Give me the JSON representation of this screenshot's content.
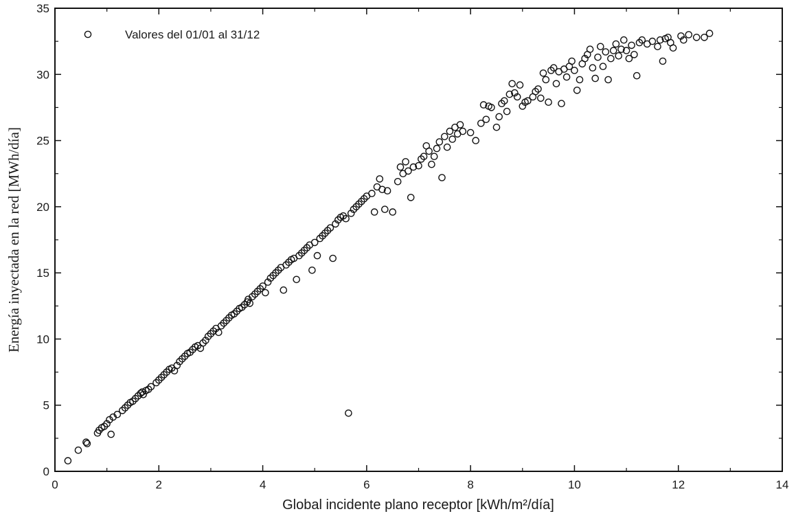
{
  "chart_data": {
    "type": "scatter",
    "title": "",
    "xlabel": "Global incidente plano receptor [kWh/m²/día]",
    "ylabel": "Energía inyectada en la red [MWh/día]",
    "xlim": [
      0,
      14
    ],
    "ylim": [
      0,
      35
    ],
    "x_ticks": [
      "0",
      "2",
      "4",
      "6",
      "8",
      "10",
      "12",
      "14"
    ],
    "y_ticks": [
      "0",
      "5",
      "10",
      "15",
      "20",
      "25",
      "30",
      "35"
    ],
    "grid": false,
    "legend_position": "top-left",
    "marker": "open-circle",
    "colors": {
      "marker": "#111111",
      "axis": "#111111",
      "background": "#ffffff"
    },
    "series": [
      {
        "name": "Valores del 01/01 al 31/12",
        "points": [
          [
            0.25,
            0.8
          ],
          [
            0.45,
            1.6
          ],
          [
            0.6,
            2.2
          ],
          [
            0.62,
            2.1
          ],
          [
            0.82,
            2.9
          ],
          [
            0.85,
            3.1
          ],
          [
            0.9,
            3.3
          ],
          [
            0.95,
            3.4
          ],
          [
            1.0,
            3.6
          ],
          [
            1.05,
            3.9
          ],
          [
            1.08,
            2.8
          ],
          [
            1.12,
            4.1
          ],
          [
            1.2,
            4.3
          ],
          [
            1.3,
            4.6
          ],
          [
            1.35,
            4.8
          ],
          [
            1.4,
            5.0
          ],
          [
            1.45,
            5.2
          ],
          [
            1.5,
            5.3
          ],
          [
            1.55,
            5.5
          ],
          [
            1.6,
            5.7
          ],
          [
            1.65,
            5.9
          ],
          [
            1.68,
            6.0
          ],
          [
            1.7,
            5.8
          ],
          [
            1.75,
            6.1
          ],
          [
            1.8,
            6.2
          ],
          [
            1.85,
            6.4
          ],
          [
            1.95,
            6.7
          ],
          [
            2.0,
            6.9
          ],
          [
            2.05,
            7.1
          ],
          [
            2.1,
            7.3
          ],
          [
            2.15,
            7.5
          ],
          [
            2.2,
            7.7
          ],
          [
            2.25,
            7.8
          ],
          [
            2.3,
            7.6
          ],
          [
            2.35,
            8.0
          ],
          [
            2.4,
            8.3
          ],
          [
            2.45,
            8.5
          ],
          [
            2.5,
            8.7
          ],
          [
            2.55,
            8.9
          ],
          [
            2.6,
            9.0
          ],
          [
            2.65,
            9.2
          ],
          [
            2.7,
            9.4
          ],
          [
            2.75,
            9.5
          ],
          [
            2.8,
            9.3
          ],
          [
            2.85,
            9.7
          ],
          [
            2.9,
            9.9
          ],
          [
            2.95,
            10.2
          ],
          [
            3.0,
            10.4
          ],
          [
            3.05,
            10.6
          ],
          [
            3.1,
            10.8
          ],
          [
            3.15,
            10.5
          ],
          [
            3.2,
            11.0
          ],
          [
            3.25,
            11.2
          ],
          [
            3.3,
            11.4
          ],
          [
            3.35,
            11.6
          ],
          [
            3.4,
            11.8
          ],
          [
            3.45,
            11.9
          ],
          [
            3.5,
            12.1
          ],
          [
            3.55,
            12.3
          ],
          [
            3.6,
            12.4
          ],
          [
            3.65,
            12.6
          ],
          [
            3.7,
            12.8
          ],
          [
            3.72,
            13.0
          ],
          [
            3.75,
            12.7
          ],
          [
            3.8,
            13.2
          ],
          [
            3.85,
            13.4
          ],
          [
            3.9,
            13.6
          ],
          [
            3.95,
            13.8
          ],
          [
            4.0,
            14.0
          ],
          [
            4.05,
            13.5
          ],
          [
            4.1,
            14.3
          ],
          [
            4.15,
            14.6
          ],
          [
            4.2,
            14.8
          ],
          [
            4.25,
            15.0
          ],
          [
            4.3,
            15.2
          ],
          [
            4.35,
            15.4
          ],
          [
            4.4,
            13.7
          ],
          [
            4.45,
            15.6
          ],
          [
            4.5,
            15.8
          ],
          [
            4.55,
            16.0
          ],
          [
            4.6,
            16.1
          ],
          [
            4.65,
            14.5
          ],
          [
            4.7,
            16.3
          ],
          [
            4.75,
            16.5
          ],
          [
            4.8,
            16.7
          ],
          [
            4.85,
            16.9
          ],
          [
            4.9,
            17.1
          ],
          [
            4.95,
            15.2
          ],
          [
            5.0,
            17.3
          ],
          [
            5.05,
            16.3
          ],
          [
            5.1,
            17.6
          ],
          [
            5.15,
            17.8
          ],
          [
            5.2,
            18.0
          ],
          [
            5.25,
            18.2
          ],
          [
            5.3,
            18.4
          ],
          [
            5.35,
            16.1
          ],
          [
            5.4,
            18.7
          ],
          [
            5.45,
            19.0
          ],
          [
            5.5,
            19.2
          ],
          [
            5.55,
            19.3
          ],
          [
            5.6,
            19.1
          ],
          [
            5.65,
            4.4
          ],
          [
            5.7,
            19.5
          ],
          [
            5.75,
            19.8
          ],
          [
            5.8,
            20.0
          ],
          [
            5.85,
            20.2
          ],
          [
            5.9,
            20.4
          ],
          [
            5.95,
            20.6
          ],
          [
            6.0,
            20.8
          ],
          [
            6.1,
            21.0
          ],
          [
            6.15,
            19.6
          ],
          [
            6.2,
            21.5
          ],
          [
            6.25,
            22.1
          ],
          [
            6.3,
            21.3
          ],
          [
            6.35,
            19.8
          ],
          [
            6.4,
            21.2
          ],
          [
            6.5,
            19.6
          ],
          [
            6.6,
            21.9
          ],
          [
            6.65,
            23.0
          ],
          [
            6.7,
            22.5
          ],
          [
            6.75,
            23.4
          ],
          [
            6.8,
            22.7
          ],
          [
            6.85,
            20.7
          ],
          [
            6.9,
            23.0
          ],
          [
            7.0,
            23.1
          ],
          [
            7.05,
            23.6
          ],
          [
            7.1,
            23.8
          ],
          [
            7.15,
            24.6
          ],
          [
            7.2,
            24.2
          ],
          [
            7.25,
            23.2
          ],
          [
            7.3,
            23.8
          ],
          [
            7.35,
            24.4
          ],
          [
            7.4,
            24.9
          ],
          [
            7.45,
            22.2
          ],
          [
            7.5,
            25.3
          ],
          [
            7.55,
            24.5
          ],
          [
            7.6,
            25.7
          ],
          [
            7.65,
            25.1
          ],
          [
            7.7,
            26.0
          ],
          [
            7.75,
            25.5
          ],
          [
            7.8,
            26.2
          ],
          [
            7.85,
            25.7
          ],
          [
            8.0,
            25.6
          ],
          [
            8.1,
            25.0
          ],
          [
            8.2,
            26.3
          ],
          [
            8.25,
            27.7
          ],
          [
            8.3,
            26.6
          ],
          [
            8.35,
            27.6
          ],
          [
            8.4,
            27.5
          ],
          [
            8.5,
            26.0
          ],
          [
            8.55,
            26.8
          ],
          [
            8.6,
            27.8
          ],
          [
            8.65,
            28.0
          ],
          [
            8.7,
            27.2
          ],
          [
            8.75,
            28.5
          ],
          [
            8.8,
            29.3
          ],
          [
            8.85,
            28.6
          ],
          [
            8.9,
            28.3
          ],
          [
            8.95,
            29.2
          ],
          [
            9.0,
            27.6
          ],
          [
            9.05,
            27.9
          ],
          [
            9.1,
            28.0
          ],
          [
            9.2,
            28.3
          ],
          [
            9.25,
            28.7
          ],
          [
            9.3,
            28.9
          ],
          [
            9.35,
            28.2
          ],
          [
            9.4,
            30.1
          ],
          [
            9.45,
            29.6
          ],
          [
            9.5,
            27.9
          ],
          [
            9.55,
            30.3
          ],
          [
            9.6,
            30.5
          ],
          [
            9.65,
            29.3
          ],
          [
            9.7,
            30.2
          ],
          [
            9.75,
            27.8
          ],
          [
            9.8,
            30.4
          ],
          [
            9.85,
            29.8
          ],
          [
            9.9,
            30.6
          ],
          [
            9.95,
            31.0
          ],
          [
            10.0,
            30.3
          ],
          [
            10.05,
            28.8
          ],
          [
            10.1,
            29.6
          ],
          [
            10.15,
            30.8
          ],
          [
            10.2,
            31.2
          ],
          [
            10.25,
            31.5
          ],
          [
            10.3,
            31.9
          ],
          [
            10.35,
            30.5
          ],
          [
            10.4,
            29.7
          ],
          [
            10.45,
            31.3
          ],
          [
            10.5,
            32.1
          ],
          [
            10.55,
            30.6
          ],
          [
            10.6,
            31.7
          ],
          [
            10.65,
            29.6
          ],
          [
            10.7,
            31.2
          ],
          [
            10.75,
            31.8
          ],
          [
            10.8,
            32.3
          ],
          [
            10.85,
            31.4
          ],
          [
            10.9,
            31.9
          ],
          [
            10.95,
            32.6
          ],
          [
            11.0,
            31.8
          ],
          [
            11.05,
            31.2
          ],
          [
            11.1,
            32.2
          ],
          [
            11.15,
            31.5
          ],
          [
            11.2,
            29.9
          ],
          [
            11.25,
            32.4
          ],
          [
            11.3,
            32.6
          ],
          [
            11.4,
            32.3
          ],
          [
            11.5,
            32.5
          ],
          [
            11.6,
            32.1
          ],
          [
            11.65,
            32.6
          ],
          [
            11.7,
            31.0
          ],
          [
            11.75,
            32.7
          ],
          [
            11.8,
            32.8
          ],
          [
            11.85,
            32.4
          ],
          [
            11.9,
            32.0
          ],
          [
            12.05,
            32.9
          ],
          [
            12.1,
            32.6
          ],
          [
            12.2,
            33.0
          ],
          [
            12.35,
            32.8
          ],
          [
            12.5,
            32.8
          ],
          [
            12.6,
            33.1
          ]
        ]
      }
    ]
  }
}
